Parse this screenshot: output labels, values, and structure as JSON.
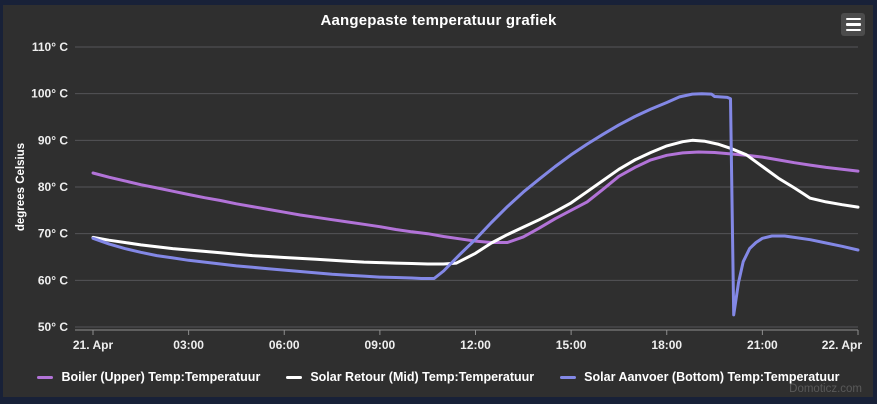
{
  "watermark": "Domoticz.com",
  "header": {
    "menu_icon": "hamburger-icon"
  },
  "colors": {
    "page_background": "#182138",
    "chart_background": "#2f2f2f",
    "gridline": "#545458",
    "axis_line": "#8f8f8f",
    "tick_label": "#eeeeee",
    "title": "#ffffff",
    "watermark": "#5a5a5a",
    "menu_button_background": "#4c4c4c",
    "series_boiler": "#b273d8",
    "series_solar_retour": "#ffffff",
    "series_solar_aanvoer": "#8388e6"
  },
  "chart_data": {
    "type": "line",
    "title": "Aangepaste temperatuur grafiek",
    "xlabel": "",
    "ylabel": "degrees Celsius",
    "ylim": [
      50,
      110
    ],
    "xlim_hours": [
      0,
      24
    ],
    "grid": true,
    "legend_position": "bottom",
    "yticks": [
      {
        "value": 110,
        "label": "110° C"
      },
      {
        "value": 100,
        "label": "100° C"
      },
      {
        "value": 90,
        "label": "90° C"
      },
      {
        "value": 80,
        "label": "80° C"
      },
      {
        "value": 70,
        "label": "70° C"
      },
      {
        "value": 60,
        "label": "60° C"
      },
      {
        "value": 50,
        "label": "50° C"
      }
    ],
    "xticks": [
      {
        "hour": 0,
        "label": "21. Apr"
      },
      {
        "hour": 3,
        "label": "03:00"
      },
      {
        "hour": 6,
        "label": "06:00"
      },
      {
        "hour": 9,
        "label": "09:00"
      },
      {
        "hour": 12,
        "label": "12:00"
      },
      {
        "hour": 15,
        "label": "15:00"
      },
      {
        "hour": 18,
        "label": "18:00"
      },
      {
        "hour": 21,
        "label": "21:00"
      },
      {
        "hour": 24,
        "label": "22. Apr"
      }
    ],
    "series": [
      {
        "name": "Boiler (Upper) Temp:Temperatuur",
        "color": "#b273d8",
        "points": [
          [
            0,
            83
          ],
          [
            0.5,
            82.1
          ],
          [
            1,
            81.3
          ],
          [
            1.5,
            80.5
          ],
          [
            2,
            79.8
          ],
          [
            2.5,
            79.1
          ],
          [
            3,
            78.4
          ],
          [
            3.5,
            77.7
          ],
          [
            4,
            77.1
          ],
          [
            4.5,
            76.4
          ],
          [
            5,
            75.8
          ],
          [
            5.5,
            75.2
          ],
          [
            6,
            74.6
          ],
          [
            6.5,
            74
          ],
          [
            7,
            73.5
          ],
          [
            7.5,
            73
          ],
          [
            8,
            72.5
          ],
          [
            8.5,
            72
          ],
          [
            9,
            71.5
          ],
          [
            9.5,
            70.9
          ],
          [
            10,
            70.4
          ],
          [
            10.5,
            70
          ],
          [
            11,
            69.4
          ],
          [
            11.5,
            68.9
          ],
          [
            12,
            68.4
          ],
          [
            12.5,
            68.1
          ],
          [
            13,
            68.1
          ],
          [
            13.5,
            69.3
          ],
          [
            14,
            71.2
          ],
          [
            14.5,
            73.2
          ],
          [
            15,
            75
          ],
          [
            15.5,
            76.8
          ],
          [
            16,
            79.5
          ],
          [
            16.5,
            82.3
          ],
          [
            17,
            84.2
          ],
          [
            17.5,
            85.8
          ],
          [
            18,
            86.8
          ],
          [
            18.5,
            87.3
          ],
          [
            19,
            87.5
          ],
          [
            19.5,
            87.4
          ],
          [
            20,
            87.1
          ],
          [
            20.5,
            86.8
          ],
          [
            21,
            86.4
          ],
          [
            21.5,
            85.8
          ],
          [
            22,
            85.2
          ],
          [
            22.5,
            84.7
          ],
          [
            23,
            84.2
          ],
          [
            23.5,
            83.8
          ],
          [
            24,
            83.4
          ]
        ]
      },
      {
        "name": "Solar Retour (Mid) Temp:Temperatuur",
        "color": "#ffffff",
        "points": [
          [
            0,
            69.2
          ],
          [
            0.5,
            68.6
          ],
          [
            1,
            68.1
          ],
          [
            1.5,
            67.6
          ],
          [
            2,
            67.2
          ],
          [
            2.5,
            66.8
          ],
          [
            3,
            66.5
          ],
          [
            3.5,
            66.2
          ],
          [
            4,
            65.9
          ],
          [
            4.5,
            65.6
          ],
          [
            5,
            65.3
          ],
          [
            5.5,
            65.1
          ],
          [
            6,
            64.9
          ],
          [
            6.5,
            64.7
          ],
          [
            7,
            64.5
          ],
          [
            7.5,
            64.3
          ],
          [
            8,
            64.1
          ],
          [
            8.5,
            63.9
          ],
          [
            9,
            63.8
          ],
          [
            9.5,
            63.7
          ],
          [
            10,
            63.6
          ],
          [
            10.5,
            63.5
          ],
          [
            11,
            63.5
          ],
          [
            11.4,
            63.7
          ],
          [
            12,
            65.8
          ],
          [
            12.5,
            68
          ],
          [
            13,
            69.8
          ],
          [
            13.5,
            71.4
          ],
          [
            14,
            73
          ],
          [
            14.5,
            74.7
          ],
          [
            15,
            76.6
          ],
          [
            15.5,
            79
          ],
          [
            16,
            81.4
          ],
          [
            16.5,
            83.8
          ],
          [
            17,
            85.8
          ],
          [
            17.5,
            87.4
          ],
          [
            18,
            88.8
          ],
          [
            18.5,
            89.7
          ],
          [
            18.8,
            90
          ],
          [
            19.2,
            89.8
          ],
          [
            19.6,
            89.2
          ],
          [
            20,
            88.3
          ],
          [
            20.5,
            86.9
          ],
          [
            21,
            84.4
          ],
          [
            21.5,
            81.9
          ],
          [
            22,
            79.8
          ],
          [
            22.3,
            78.5
          ],
          [
            22.5,
            77.6
          ],
          [
            23,
            76.8
          ],
          [
            23.5,
            76.2
          ],
          [
            24,
            75.7
          ]
        ]
      },
      {
        "name": "Solar Aanvoer (Bottom) Temp:Temperatuur",
        "color": "#8388e6",
        "points": [
          [
            0,
            69
          ],
          [
            0.5,
            67.8
          ],
          [
            1,
            66.8
          ],
          [
            1.5,
            66
          ],
          [
            2,
            65.3
          ],
          [
            2.5,
            64.8
          ],
          [
            3,
            64.3
          ],
          [
            3.5,
            63.9
          ],
          [
            4,
            63.5
          ],
          [
            4.5,
            63.1
          ],
          [
            5,
            62.8
          ],
          [
            5.5,
            62.5
          ],
          [
            6,
            62.2
          ],
          [
            6.5,
            61.9
          ],
          [
            7,
            61.6
          ],
          [
            7.5,
            61.3
          ],
          [
            8,
            61.1
          ],
          [
            8.5,
            60.9
          ],
          [
            9,
            60.7
          ],
          [
            9.5,
            60.6
          ],
          [
            10,
            60.5
          ],
          [
            10.3,
            60.4
          ],
          [
            10.7,
            60.4
          ],
          [
            11,
            62
          ],
          [
            11.5,
            65.5
          ],
          [
            12,
            68.8
          ],
          [
            12.5,
            72.4
          ],
          [
            13,
            75.8
          ],
          [
            13.5,
            78.9
          ],
          [
            14,
            81.7
          ],
          [
            14.5,
            84.4
          ],
          [
            15,
            86.9
          ],
          [
            15.5,
            89.2
          ],
          [
            16,
            91.3
          ],
          [
            16.5,
            93.3
          ],
          [
            17,
            95.1
          ],
          [
            17.5,
            96.7
          ],
          [
            18,
            98.1
          ],
          [
            18.4,
            99.3
          ],
          [
            18.8,
            99.9
          ],
          [
            19.1,
            100
          ],
          [
            19.4,
            99.9
          ],
          [
            19.5,
            99.4
          ],
          [
            19.9,
            99.2
          ],
          [
            20,
            98.9
          ],
          [
            20.1,
            52.6
          ],
          [
            20.25,
            59.5
          ],
          [
            20.4,
            64
          ],
          [
            20.6,
            66.8
          ],
          [
            20.8,
            68.1
          ],
          [
            21,
            69
          ],
          [
            21.3,
            69.5
          ],
          [
            21.7,
            69.5
          ],
          [
            22,
            69.2
          ],
          [
            22.5,
            68.7
          ],
          [
            23,
            68
          ],
          [
            23.5,
            67.3
          ],
          [
            24,
            66.5
          ]
        ]
      }
    ]
  }
}
